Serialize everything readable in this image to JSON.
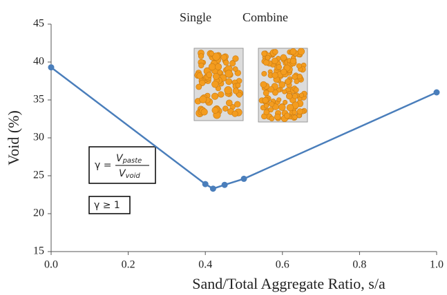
{
  "chart_data": {
    "type": "line",
    "x": [
      0,
      0.4,
      0.42,
      0.45,
      0.5,
      1.0
    ],
    "series": [
      {
        "name": "Void",
        "color": "#4a7ebb",
        "values": [
          39.3,
          23.9,
          23.3,
          23.8,
          24.6,
          36.0
        ]
      }
    ],
    "xlim": [
      0,
      1.0
    ],
    "xticks": [
      {
        "value": 0,
        "label": "0.0"
      },
      0.2,
      0.4,
      0.6,
      0.8,
      {
        "value": 1.0,
        "label": "1.0"
      }
    ],
    "ylim": [
      15,
      45
    ],
    "yticks": [
      15,
      20,
      25,
      30,
      35,
      40,
      45
    ],
    "grid": false,
    "xlabel": "Sand/Total Aggregate  Ratio, s/a",
    "ylabel": "Void (%)",
    "annotations": {
      "single": "Single",
      "combine": "Combine",
      "formula_lhs": "γ =",
      "numerator": {
        "symbol": "V",
        "subscript": "paste"
      },
      "denominator": {
        "symbol": "V",
        "subscript": "void"
      },
      "condition": "γ ≥ 1"
    }
  }
}
